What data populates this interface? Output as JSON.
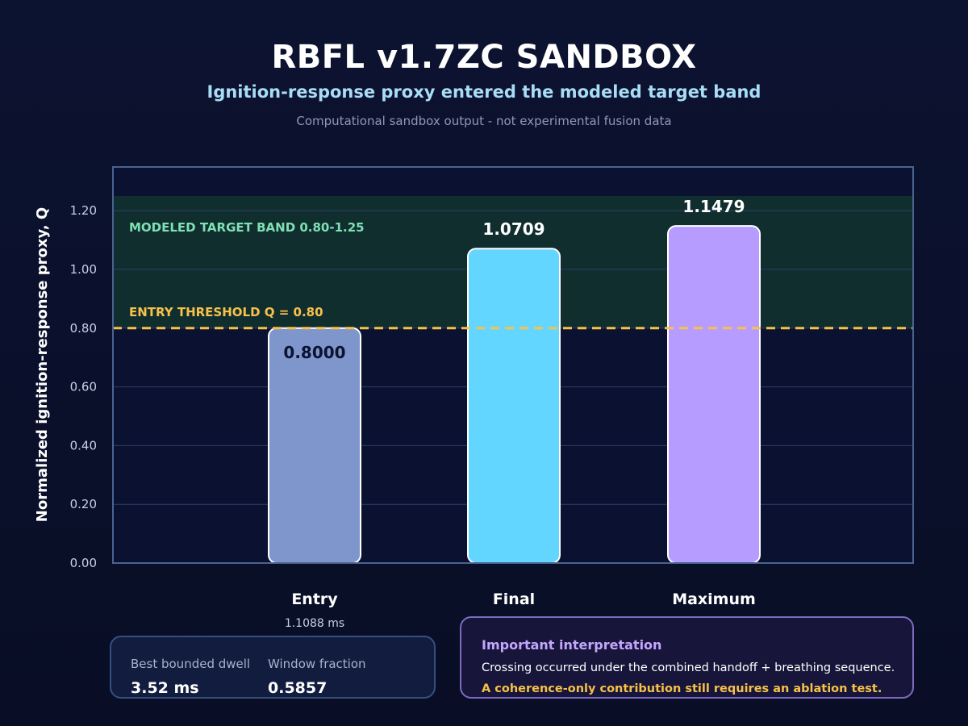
{
  "header": {
    "title": "RBFL v1.7ZC SANDBOX",
    "subtitle": "Ignition-response proxy entered the modeled target band",
    "note": "Computational sandbox output - not experimental fusion data"
  },
  "chart_data": {
    "type": "bar",
    "categories": [
      "Entry",
      "Final",
      "Maximum"
    ],
    "values": [
      0.8,
      1.0709,
      1.1479
    ],
    "value_labels": [
      "0.8000",
      "1.0709",
      "1.1479"
    ],
    "category_sublabels": [
      "1.1088 ms",
      "",
      ""
    ],
    "bar_colors": [
      "#7f96cc",
      "#63d6ff",
      "#b79cff"
    ],
    "ylabel": "Normalized ignition-response proxy, Q",
    "ylim": [
      0,
      1.35
    ],
    "yticks": [
      0,
      0.2,
      0.4,
      0.6,
      0.8,
      1.0,
      1.2
    ],
    "ytick_labels": [
      "0.00",
      "0.20",
      "0.40",
      "0.60",
      "0.80",
      "1.00",
      "1.20"
    ],
    "grid": true,
    "target_band": {
      "low": 0.8,
      "high": 1.25,
      "label": "MODELED TARGET BAND  0.80-1.25",
      "color": "#7ee0b4"
    },
    "threshold": {
      "value": 0.8,
      "label": "ENTRY THRESHOLD  Q = 0.80",
      "color": "#f7c24a"
    }
  },
  "metrics": {
    "dwell_label": "Best bounded dwell",
    "dwell_value": "3.52 ms",
    "fraction_label": "Window fraction",
    "fraction_value": "0.5857"
  },
  "interpretation": {
    "title": "Important interpretation",
    "body": "Crossing occurred under the combined handoff + breathing sequence.",
    "warning": "A coherence-only contribution still requires an ablation test."
  },
  "colors": {
    "background": "#0a1029",
    "plot_border": "#4a6391",
    "gridline": "#2c3f6b",
    "band_fill": "#12302f",
    "accent_purple": "#c4a6ff",
    "accent_yellow": "#f7c048"
  }
}
